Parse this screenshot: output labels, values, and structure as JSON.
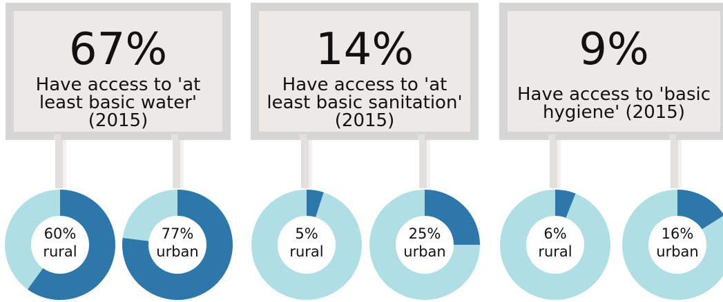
{
  "colors": {
    "dark": "#2d77ab",
    "light": "#b0dee5",
    "hole": "#ffffff"
  },
  "cards": [
    {
      "big": "67%",
      "sub": [
        "Have access to 'at",
        "least basic water'",
        "(2015)"
      ]
    },
    {
      "big": "14%",
      "sub": [
        "Have access to 'at",
        "least basic sanitation'",
        "(2015)"
      ]
    },
    {
      "big": "9%",
      "sub": [
        "Have access to 'basic",
        "hygiene' (2015)"
      ]
    }
  ],
  "chart_data": {
    "type": "pie",
    "series": [
      {
        "value": 60,
        "pct": "60%",
        "group": "rural"
      },
      {
        "value": 77,
        "pct": "77%",
        "group": "urban"
      },
      {
        "value": 5,
        "pct": "5%",
        "group": "rural"
      },
      {
        "value": 25,
        "pct": "25%",
        "group": "urban"
      },
      {
        "value": 6,
        "pct": "6%",
        "group": "rural"
      },
      {
        "value": 16,
        "pct": "16%",
        "group": "urban"
      }
    ]
  }
}
